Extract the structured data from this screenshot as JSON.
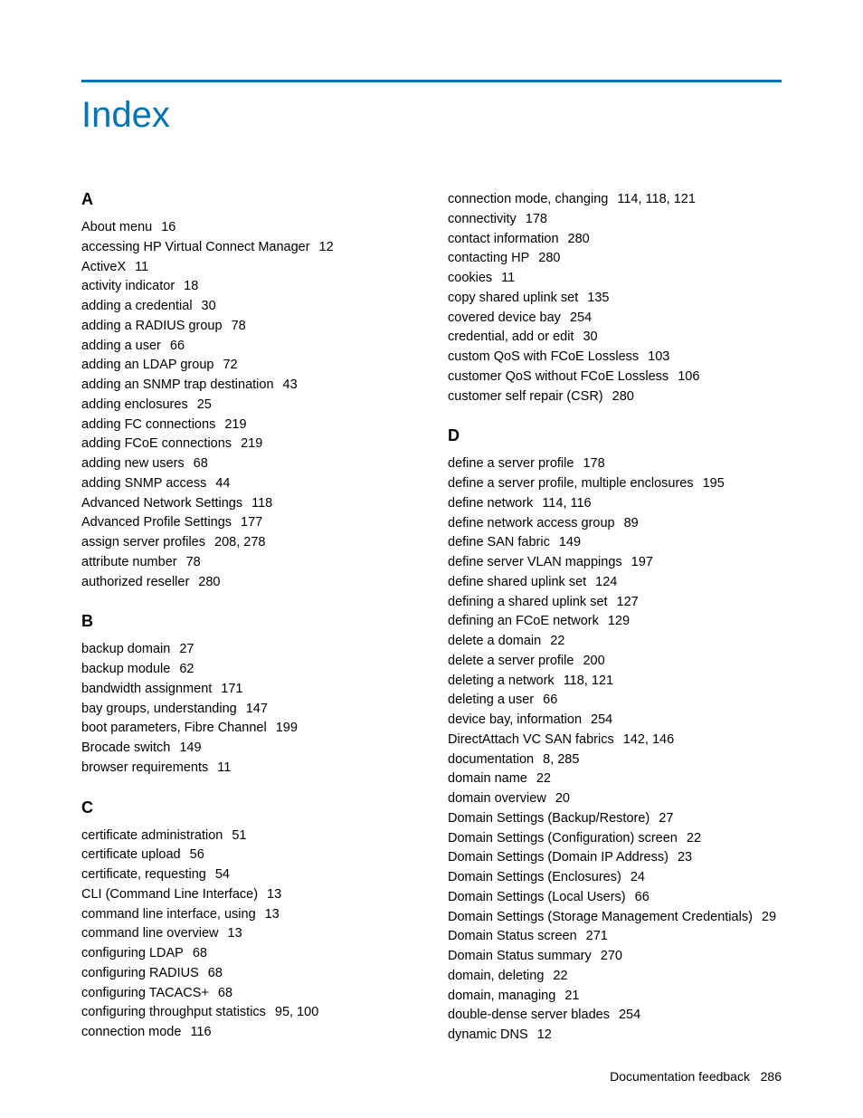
{
  "title": "Index",
  "footer": {
    "label": "Documentation feedback",
    "page": "286"
  },
  "colors": {
    "accent": "#0073b3",
    "text": "#000000",
    "background": "#ffffff"
  },
  "sections": [
    {
      "letter": "A",
      "entries": [
        {
          "term": "About menu",
          "pages": "16"
        },
        {
          "term": "accessing HP Virtual Connect Manager",
          "pages": "12"
        },
        {
          "term": "ActiveX",
          "pages": "11"
        },
        {
          "term": "activity indicator",
          "pages": "18"
        },
        {
          "term": "adding a credential",
          "pages": "30"
        },
        {
          "term": "adding a RADIUS group",
          "pages": "78"
        },
        {
          "term": "adding a user",
          "pages": "66"
        },
        {
          "term": "adding an LDAP group",
          "pages": "72"
        },
        {
          "term": "adding an SNMP trap destination",
          "pages": "43"
        },
        {
          "term": "adding enclosures",
          "pages": "25"
        },
        {
          "term": "adding FC connections",
          "pages": "219"
        },
        {
          "term": "adding FCoE connections",
          "pages": "219"
        },
        {
          "term": "adding new users",
          "pages": "68"
        },
        {
          "term": "adding SNMP access",
          "pages": "44"
        },
        {
          "term": "Advanced Network Settings",
          "pages": "118"
        },
        {
          "term": "Advanced Profile Settings",
          "pages": "177"
        },
        {
          "term": "assign server profiles",
          "pages": "208, 278"
        },
        {
          "term": "attribute number",
          "pages": "78"
        },
        {
          "term": "authorized reseller",
          "pages": "280"
        }
      ]
    },
    {
      "letter": "B",
      "entries": [
        {
          "term": "backup domain",
          "pages": "27"
        },
        {
          "term": "backup module",
          "pages": "62"
        },
        {
          "term": "bandwidth assignment",
          "pages": "171"
        },
        {
          "term": "bay groups, understanding",
          "pages": "147"
        },
        {
          "term": "boot parameters, Fibre Channel",
          "pages": "199"
        },
        {
          "term": "Brocade switch",
          "pages": "149"
        },
        {
          "term": "browser requirements",
          "pages": "11"
        }
      ]
    },
    {
      "letter": "C",
      "entries": [
        {
          "term": "certificate administration",
          "pages": "51"
        },
        {
          "term": "certificate upload",
          "pages": "56"
        },
        {
          "term": "certificate, requesting",
          "pages": "54"
        },
        {
          "term": "CLI (Command Line Interface)",
          "pages": "13"
        },
        {
          "term": "command line interface, using",
          "pages": "13"
        },
        {
          "term": "command line overview",
          "pages": "13"
        },
        {
          "term": "configuring LDAP",
          "pages": "68"
        },
        {
          "term": "configuring RADIUS",
          "pages": "68"
        },
        {
          "term": "configuring TACACS+",
          "pages": "68"
        },
        {
          "term": "configuring throughput statistics",
          "pages": "95, 100"
        },
        {
          "term": "connection mode",
          "pages": "116"
        },
        {
          "term": "connection mode, changing",
          "pages": "114, 118, 121"
        },
        {
          "term": "connectivity",
          "pages": "178"
        },
        {
          "term": "contact information",
          "pages": "280"
        },
        {
          "term": "contacting HP",
          "pages": "280"
        },
        {
          "term": "cookies",
          "pages": "11"
        },
        {
          "term": "copy shared uplink set",
          "pages": "135"
        },
        {
          "term": "covered device bay",
          "pages": "254"
        },
        {
          "term": "credential, add or edit",
          "pages": "30"
        },
        {
          "term": "custom QoS with FCoE Lossless",
          "pages": "103"
        },
        {
          "term": "customer QoS without FCoE Lossless",
          "pages": "106"
        },
        {
          "term": "customer self repair (CSR)",
          "pages": "280"
        }
      ]
    },
    {
      "letter": "D",
      "entries": [
        {
          "term": "define a server profile",
          "pages": "178"
        },
        {
          "term": "define a server profile, multiple enclosures",
          "pages": "195"
        },
        {
          "term": "define network",
          "pages": "114, 116"
        },
        {
          "term": "define network access group",
          "pages": "89"
        },
        {
          "term": "define SAN fabric",
          "pages": "149"
        },
        {
          "term": "define server VLAN mappings",
          "pages": "197"
        },
        {
          "term": "define shared uplink set",
          "pages": "124"
        },
        {
          "term": "defining a shared uplink set",
          "pages": "127"
        },
        {
          "term": "defining an FCoE network",
          "pages": "129"
        },
        {
          "term": "delete a domain",
          "pages": "22"
        },
        {
          "term": "delete a server profile",
          "pages": "200"
        },
        {
          "term": "deleting a network",
          "pages": "118, 121"
        },
        {
          "term": "deleting a user",
          "pages": "66"
        },
        {
          "term": "device bay, information",
          "pages": "254"
        },
        {
          "term": "DirectAttach VC SAN fabrics",
          "pages": "142, 146"
        },
        {
          "term": "documentation",
          "pages": "8, 285"
        },
        {
          "term": "domain name",
          "pages": "22"
        },
        {
          "term": "domain overview",
          "pages": "20"
        },
        {
          "term": "Domain Settings (Backup/Restore)",
          "pages": "27"
        },
        {
          "term": "Domain Settings (Configuration) screen",
          "pages": "22"
        },
        {
          "term": "Domain Settings (Domain IP Address)",
          "pages": "23"
        },
        {
          "term": "Domain Settings (Enclosures)",
          "pages": "24"
        },
        {
          "term": "Domain Settings (Local Users)",
          "pages": "66"
        },
        {
          "term": "Domain Settings (Storage Management Credentials)",
          "pages": "29"
        },
        {
          "term": "Domain Status screen",
          "pages": "271"
        },
        {
          "term": "Domain Status summary",
          "pages": "270"
        },
        {
          "term": "domain, deleting",
          "pages": "22"
        },
        {
          "term": "domain, managing",
          "pages": "21"
        },
        {
          "term": "double-dense server blades",
          "pages": "254"
        },
        {
          "term": "dynamic DNS",
          "pages": "12"
        }
      ]
    }
  ]
}
